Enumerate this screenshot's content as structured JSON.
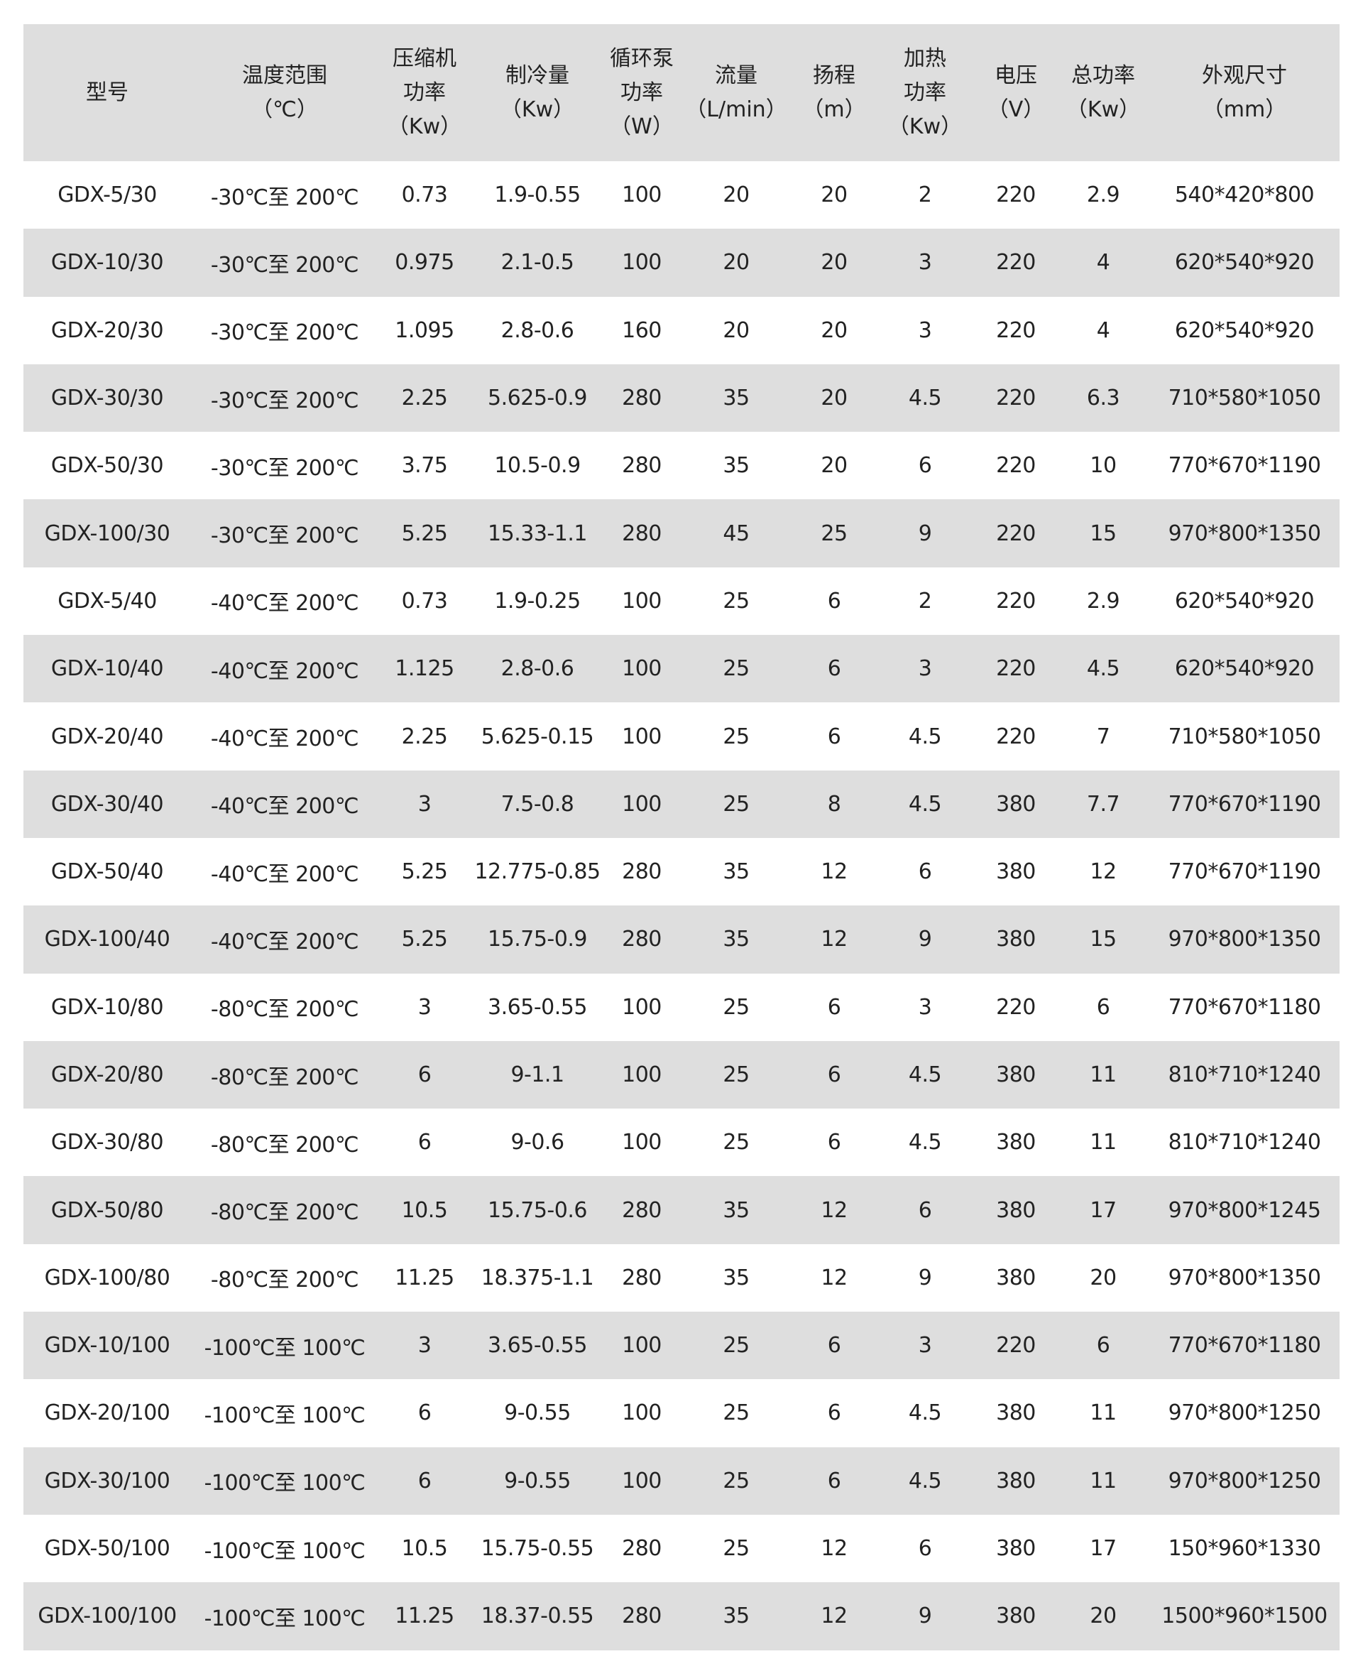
{
  "headers": [
    [
      "型号"
    ],
    [
      "温度范围",
      "（℃）"
    ],
    [
      "压缩机",
      "功率",
      "（Kw）"
    ],
    [
      "制冷量",
      "（Kw）"
    ],
    [
      "循环泵",
      "功率",
      "（W）"
    ],
    [
      "流量",
      "（L/min）"
    ],
    [
      "扬程",
      "（m）"
    ],
    [
      "加热",
      "功率",
      "（Kw）"
    ],
    [
      "电压",
      "（V）"
    ],
    [
      "总功率",
      "（Kw）"
    ],
    [
      "外观尺寸",
      "（mm）"
    ]
  ],
  "rows": [
    [
      "GDX-5/30",
      "-30℃至 200℃",
      "0.73",
      "1.9-0.55",
      "100",
      "20",
      "20",
      "2",
      "220",
      "2.9",
      "540*420*800"
    ],
    [
      "GDX-10/30",
      "-30℃至 200℃",
      "0.975",
      "2.1-0.5",
      "100",
      "20",
      "20",
      "3",
      "220",
      "4",
      "620*540*920"
    ],
    [
      "GDX-20/30",
      "-30℃至 200℃",
      "1.095",
      "2.8-0.6",
      "160",
      "20",
      "20",
      "3",
      "220",
      "4",
      "620*540*920"
    ],
    [
      "GDX-30/30",
      "-30℃至 200℃",
      "2.25",
      "5.625-0.9",
      "280",
      "35",
      "20",
      "4.5",
      "220",
      "6.3",
      "710*580*1050"
    ],
    [
      "GDX-50/30",
      "-30℃至 200℃",
      "3.75",
      "10.5-0.9",
      "280",
      "35",
      "20",
      "6",
      "220",
      "10",
      "770*670*1190"
    ],
    [
      "GDX-100/30",
      "-30℃至 200℃",
      "5.25",
      "15.33-1.1",
      "280",
      "45",
      "25",
      "9",
      "220",
      "15",
      "970*800*1350"
    ],
    [
      "GDX-5/40",
      "-40℃至 200℃",
      "0.73",
      "1.9-0.25",
      "100",
      "25",
      "6",
      "2",
      "220",
      "2.9",
      "620*540*920"
    ],
    [
      "GDX-10/40",
      "-40℃至 200℃",
      "1.125",
      "2.8-0.6",
      "100",
      "25",
      "6",
      "3",
      "220",
      "4.5",
      "620*540*920"
    ],
    [
      "GDX-20/40",
      "-40℃至 200℃",
      "2.25",
      "5.625-0.15",
      "100",
      "25",
      "6",
      "4.5",
      "220",
      "7",
      "710*580*1050"
    ],
    [
      "GDX-30/40",
      "-40℃至 200℃",
      "3",
      "7.5-0.8",
      "100",
      "25",
      "8",
      "4.5",
      "380",
      "7.7",
      "770*670*1190"
    ],
    [
      "GDX-50/40",
      "-40℃至 200℃",
      "5.25",
      "12.775-0.85",
      "280",
      "35",
      "12",
      "6",
      "380",
      "12",
      "770*670*1190"
    ],
    [
      "GDX-100/40",
      "-40℃至 200℃",
      "5.25",
      "15.75-0.9",
      "280",
      "35",
      "12",
      "9",
      "380",
      "15",
      "970*800*1350"
    ],
    [
      "GDX-10/80",
      "-80℃至 200℃",
      "3",
      "3.65-0.55",
      "100",
      "25",
      "6",
      "3",
      "220",
      "6",
      "770*670*1180"
    ],
    [
      "GDX-20/80",
      "-80℃至 200℃",
      "6",
      "9-1.1",
      "100",
      "25",
      "6",
      "4.5",
      "380",
      "11",
      "810*710*1240"
    ],
    [
      "GDX-30/80",
      "-80℃至 200℃",
      "6",
      "9-0.6",
      "100",
      "25",
      "6",
      "4.5",
      "380",
      "11",
      "810*710*1240"
    ],
    [
      "GDX-50/80",
      "-80℃至 200℃",
      "10.5",
      "15.75-0.6",
      "280",
      "35",
      "12",
      "6",
      "380",
      "17",
      "970*800*1245"
    ],
    [
      "GDX-100/80",
      "-80℃至 200℃",
      "11.25",
      "18.375-1.1",
      "280",
      "35",
      "12",
      "9",
      "380",
      "20",
      "970*800*1350"
    ],
    [
      "GDX-10/100",
      "-100℃至 100℃",
      "3",
      "3.65-0.55",
      "100",
      "25",
      "6",
      "3",
      "220",
      "6",
      "770*670*1180"
    ],
    [
      "GDX-20/100",
      "-100℃至 100℃",
      "6",
      "9-0.55",
      "100",
      "25",
      "6",
      "4.5",
      "380",
      "11",
      "970*800*1250"
    ],
    [
      "GDX-30/100",
      "-100℃至 100℃",
      "6",
      "9-0.55",
      "100",
      "25",
      "6",
      "4.5",
      "380",
      "11",
      "970*800*1250"
    ],
    [
      "GDX-50/100",
      "-100℃至 100℃",
      "10.5",
      "15.75-0.55",
      "280",
      "25",
      "12",
      "6",
      "380",
      "17",
      "150*960*1330"
    ],
    [
      "GDX-100/100",
      "-100℃至 100℃",
      "11.25",
      "18.37-0.55",
      "280",
      "35",
      "12",
      "9",
      "380",
      "20",
      "1500*960*1500"
    ]
  ]
}
